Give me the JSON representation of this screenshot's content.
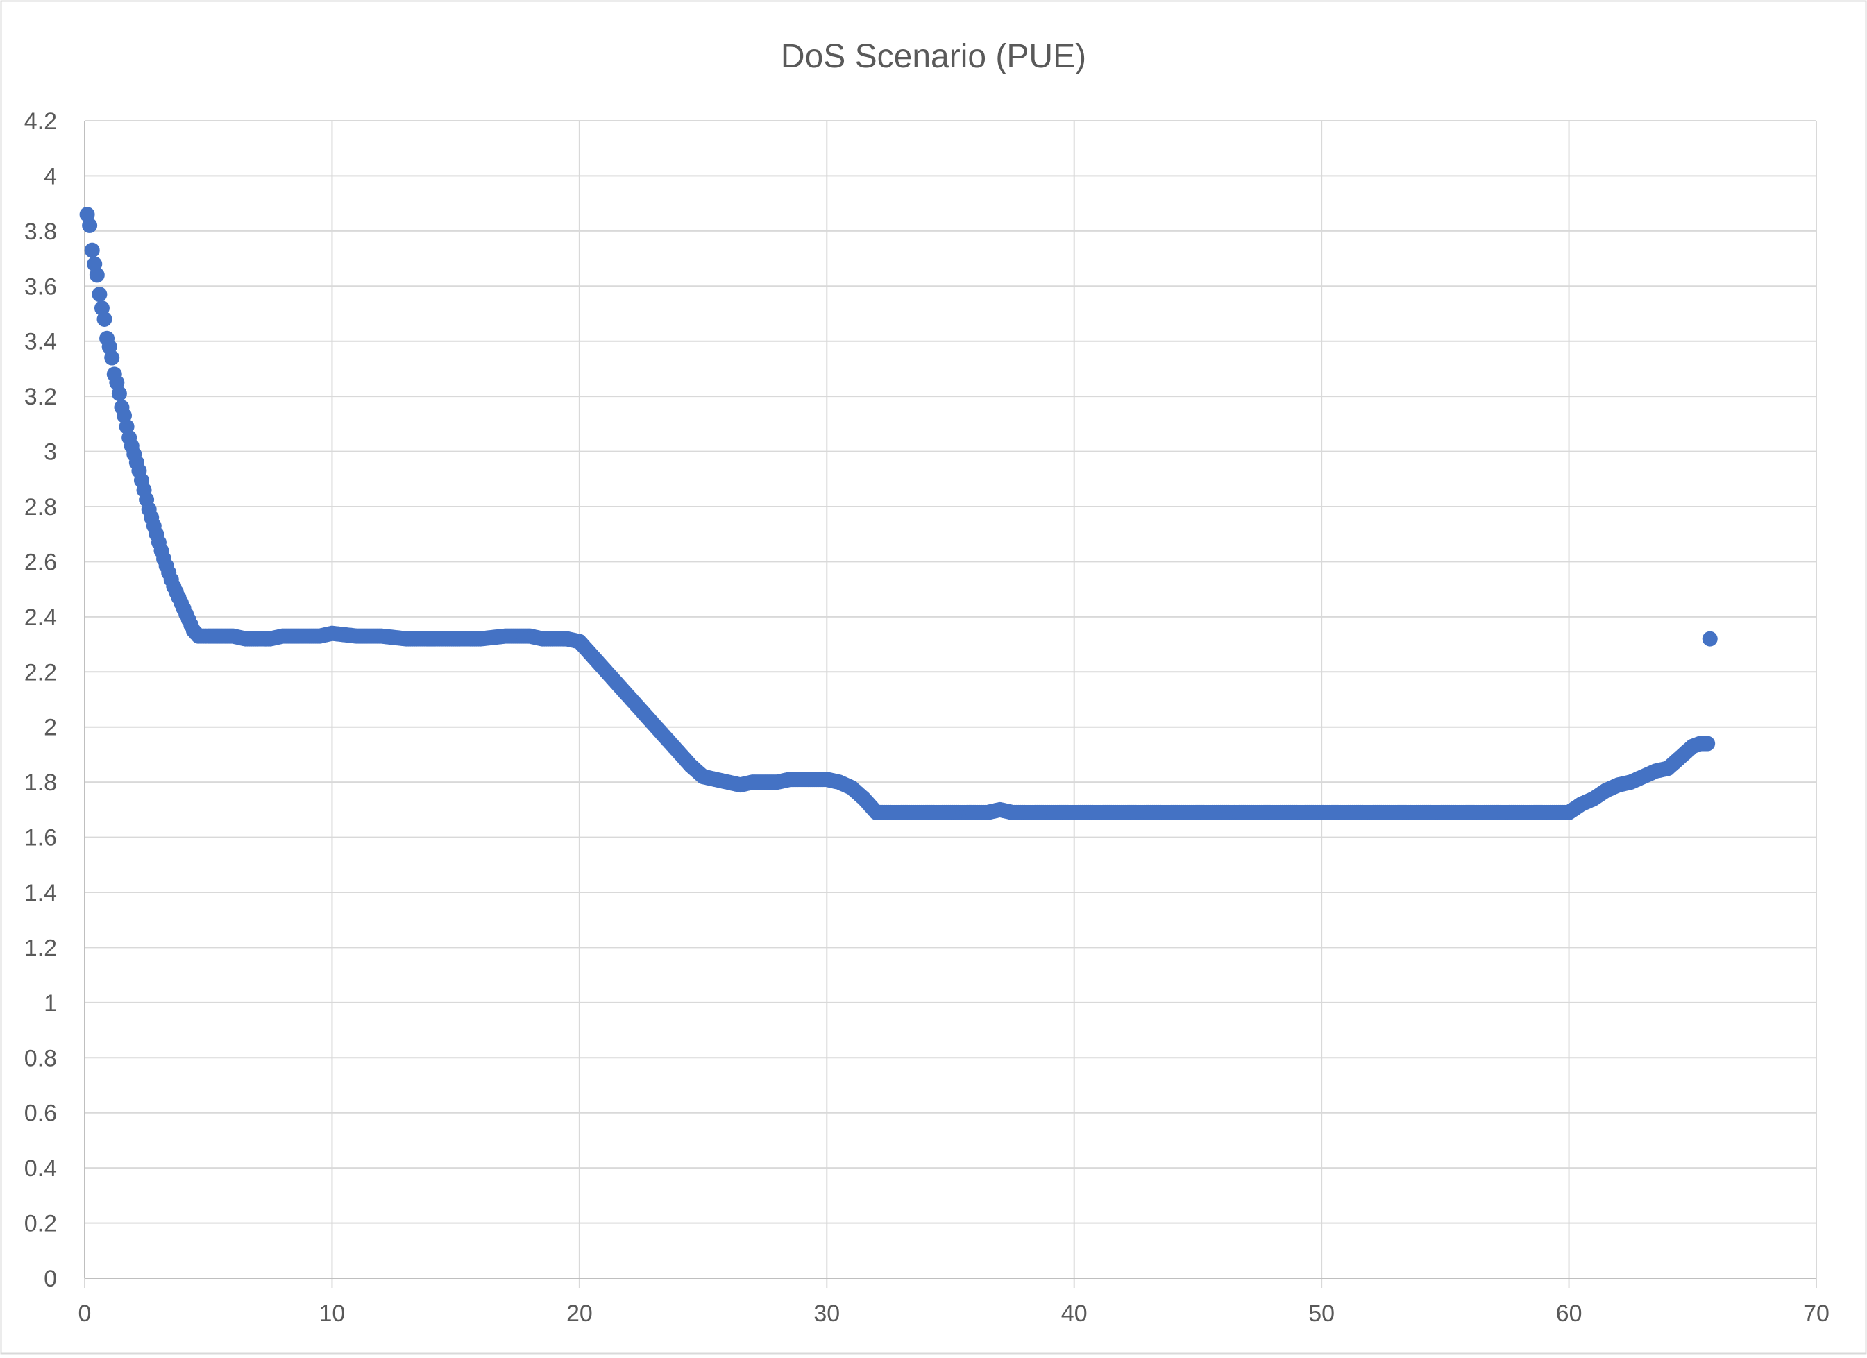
{
  "chart_data": {
    "type": "scatter",
    "title": "DoS Scenario (PUE)",
    "xlabel": "",
    "ylabel": "",
    "xlim": [
      0,
      70
    ],
    "ylim": [
      0,
      4.2
    ],
    "x_ticks": [
      0,
      10,
      20,
      30,
      40,
      50,
      60,
      70
    ],
    "y_ticks": [
      0,
      0.2,
      0.4,
      0.6,
      0.8,
      1,
      1.2,
      1.4,
      1.6,
      1.8,
      2,
      2.2,
      2.4,
      2.6,
      2.8,
      3,
      3.2,
      3.4,
      3.6,
      3.8,
      4,
      4.2
    ],
    "x_tick_labels": [
      "0",
      "10",
      "20",
      "30",
      "40",
      "50",
      "60",
      "70"
    ],
    "y_tick_labels": [
      "0",
      "0.2",
      "0.4",
      "0.6",
      "0.8",
      "1",
      "1.2",
      "1.4",
      "1.6",
      "1.8",
      "2",
      "2.2",
      "2.4",
      "2.6",
      "2.8",
      "3",
      "3.2",
      "3.4",
      "3.6",
      "3.8",
      "4",
      "4.2"
    ],
    "grid": true,
    "legend": "none",
    "colors": {
      "marker": "#4472C4",
      "grid": "#D9D9D9",
      "text": "#595959",
      "border": "#D9D9D9"
    },
    "series": [
      {
        "name": "",
        "x": [
          0.1,
          0.2,
          0.3,
          0.4,
          0.5,
          0.6,
          0.7,
          0.8,
          0.9,
          1.0,
          1.1,
          1.2,
          1.3,
          1.4,
          1.5,
          1.6,
          1.7,
          1.8,
          1.9,
          2.0,
          2.2,
          2.4,
          2.6,
          2.8,
          3.0,
          3.2,
          3.4,
          3.6,
          3.8,
          4.0,
          4.2,
          4.4,
          4.6,
          4.8,
          5.0,
          5.3,
          5.6,
          6.0,
          6.5,
          7.0,
          7.5,
          8.0,
          8.5,
          9.0,
          9.5,
          10.0,
          11.0,
          12.0,
          13.0,
          14.0,
          15.0,
          16.0,
          17.0,
          18.0,
          18.5,
          19.0,
          19.5,
          20.0,
          20.5,
          21.0,
          21.5,
          22.0,
          22.5,
          23.0,
          23.5,
          24.0,
          24.5,
          25.0,
          25.5,
          26.0,
          26.5,
          27.0,
          27.5,
          28.0,
          28.5,
          29.0,
          29.5,
          30.0,
          30.5,
          31.0,
          31.5,
          32.0,
          33.0,
          34.0,
          35.0,
          36.0,
          36.5,
          37.0,
          37.5,
          38.0,
          40.0,
          42.0,
          44.0,
          46.0,
          48.0,
          50.0,
          52.0,
          54.0,
          56.0,
          58.0,
          59.5,
          60.0,
          60.5,
          61.0,
          61.5,
          62.0,
          62.5,
          63.0,
          63.5,
          64.0,
          64.5,
          65.0,
          65.3,
          65.6,
          65.7
        ],
        "y": [
          3.86,
          3.82,
          3.73,
          3.68,
          3.64,
          3.57,
          3.52,
          3.48,
          3.41,
          3.38,
          3.34,
          3.28,
          3.25,
          3.21,
          3.16,
          3.13,
          3.09,
          3.05,
          3.02,
          2.99,
          2.93,
          2.86,
          2.79,
          2.73,
          2.67,
          2.61,
          2.56,
          2.51,
          2.47,
          2.43,
          2.39,
          2.35,
          2.33,
          2.33,
          2.33,
          2.33,
          2.33,
          2.33,
          2.32,
          2.32,
          2.32,
          2.33,
          2.33,
          2.33,
          2.33,
          2.34,
          2.33,
          2.33,
          2.32,
          2.32,
          2.32,
          2.32,
          2.33,
          2.33,
          2.32,
          2.32,
          2.32,
          2.31,
          2.26,
          2.21,
          2.16,
          2.11,
          2.06,
          2.01,
          1.96,
          1.91,
          1.86,
          1.82,
          1.81,
          1.8,
          1.79,
          1.8,
          1.8,
          1.8,
          1.81,
          1.81,
          1.81,
          1.81,
          1.8,
          1.78,
          1.74,
          1.69,
          1.69,
          1.69,
          1.69,
          1.69,
          1.69,
          1.7,
          1.69,
          1.69,
          1.69,
          1.69,
          1.69,
          1.69,
          1.69,
          1.69,
          1.69,
          1.69,
          1.69,
          1.69,
          1.69,
          1.69,
          1.72,
          1.74,
          1.77,
          1.79,
          1.8,
          1.82,
          1.84,
          1.85,
          1.89,
          1.93,
          1.94,
          1.94,
          2.32
        ]
      }
    ]
  }
}
